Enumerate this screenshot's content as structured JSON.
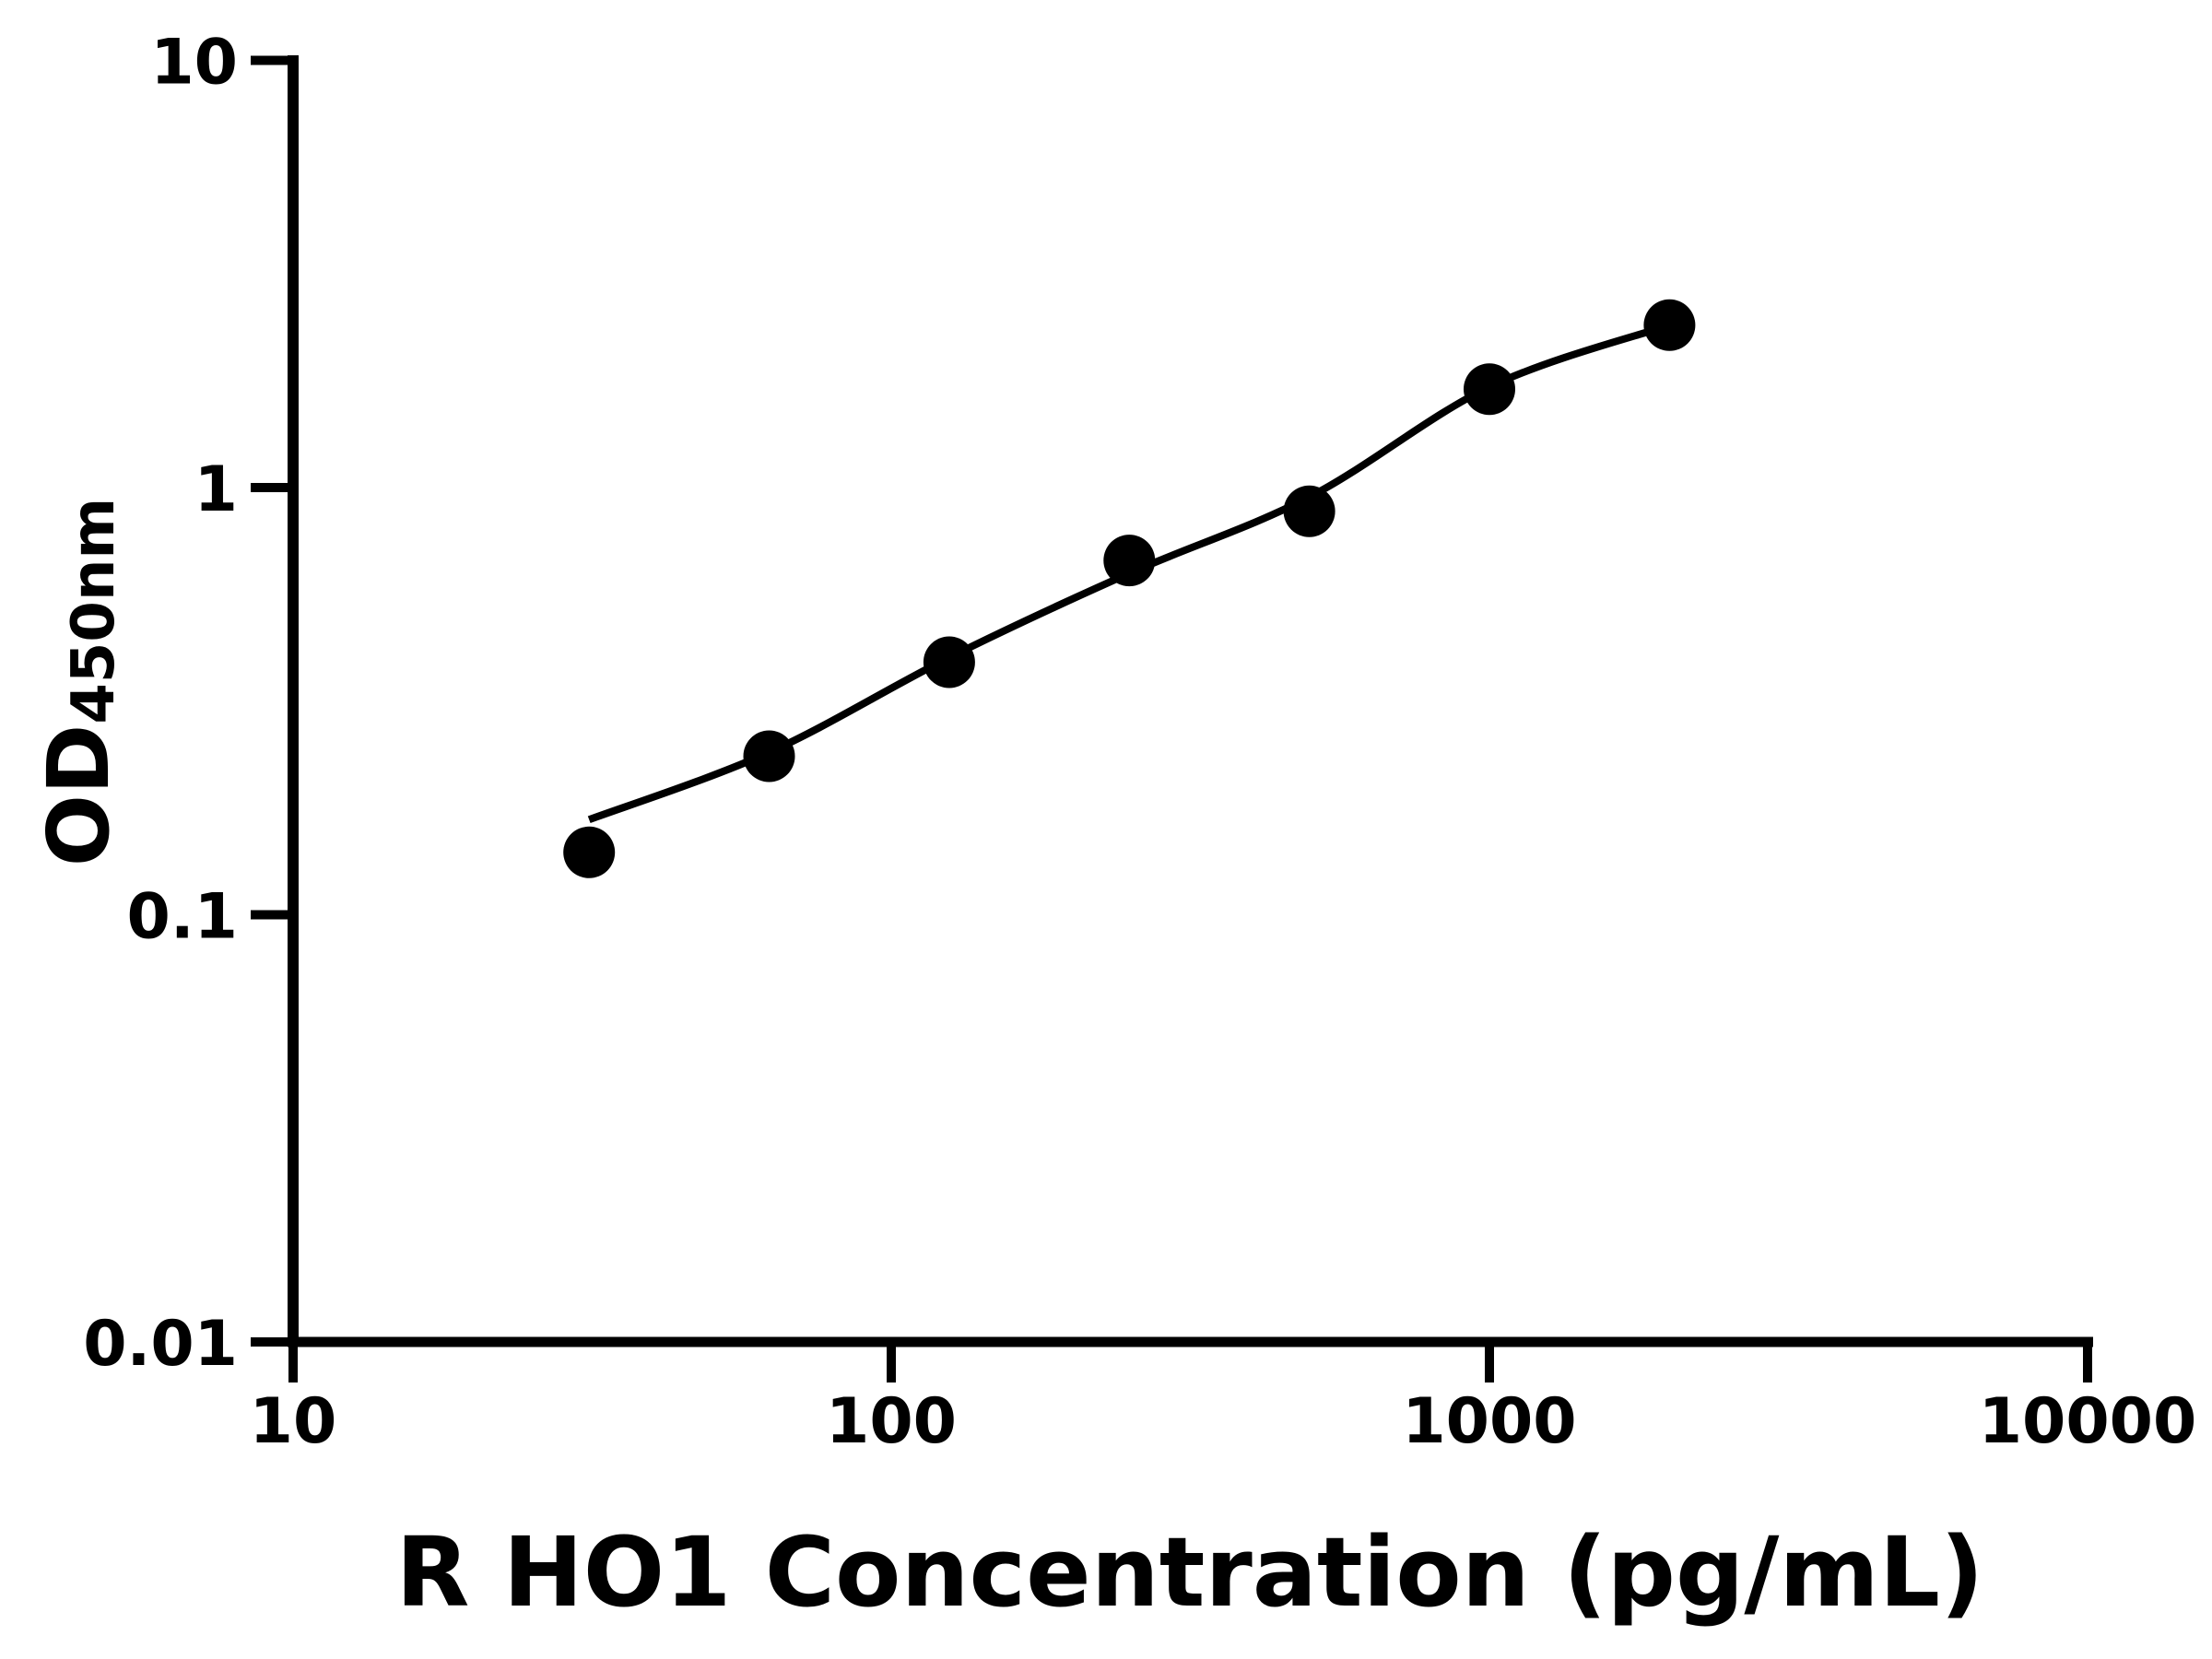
{
  "figure": {
    "background_color": "#ffffff",
    "ink_color": "#000000"
  },
  "chart_data": {
    "type": "scatter",
    "subtype": "elisa-standard-curve",
    "title": "",
    "xlabel": "R HO1 Concentration (pg/mL)",
    "ylabel_main": "OD",
    "ylabel_sub": "450nm",
    "x_scale": "log10",
    "y_scale": "log10",
    "xlim": [
      10,
      10000
    ],
    "ylim": [
      0.01,
      10
    ],
    "grid": false,
    "legend": "none",
    "x_ticks": [
      {
        "value": 10,
        "label": "10"
      },
      {
        "value": 100,
        "label": "100"
      },
      {
        "value": 1000,
        "label": "1000"
      },
      {
        "value": 10000,
        "label": "10000"
      }
    ],
    "y_ticks": [
      {
        "value": 10,
        "label": "10"
      },
      {
        "value": 1,
        "label": "1"
      },
      {
        "value": 0.1,
        "label": "0.1"
      },
      {
        "value": 0.01,
        "label": "0.01"
      }
    ],
    "series": [
      {
        "name": "standards",
        "marker": "filled-circle",
        "color": "#000000",
        "points": [
          {
            "x": 31.25,
            "y": 0.14
          },
          {
            "x": 62.5,
            "y": 0.235
          },
          {
            "x": 125,
            "y": 0.39
          },
          {
            "x": 250,
            "y": 0.675
          },
          {
            "x": 500,
            "y": 0.88
          },
          {
            "x": 1000,
            "y": 1.7
          },
          {
            "x": 2000,
            "y": 2.4
          }
        ]
      }
    ],
    "fit_curve": {
      "name": "fitted-standard-curve",
      "color": "#000000",
      "x_range": [
        31.25,
        2000
      ],
      "anchors": [
        {
          "x": 31.25,
          "y": 0.167
        },
        {
          "x": 62.5,
          "y": 0.24
        },
        {
          "x": 125,
          "y": 0.4
        },
        {
          "x": 250,
          "y": 0.63
        },
        {
          "x": 500,
          "y": 0.95
        },
        {
          "x": 1000,
          "y": 1.72
        },
        {
          "x": 2000,
          "y": 2.4
        }
      ]
    }
  }
}
